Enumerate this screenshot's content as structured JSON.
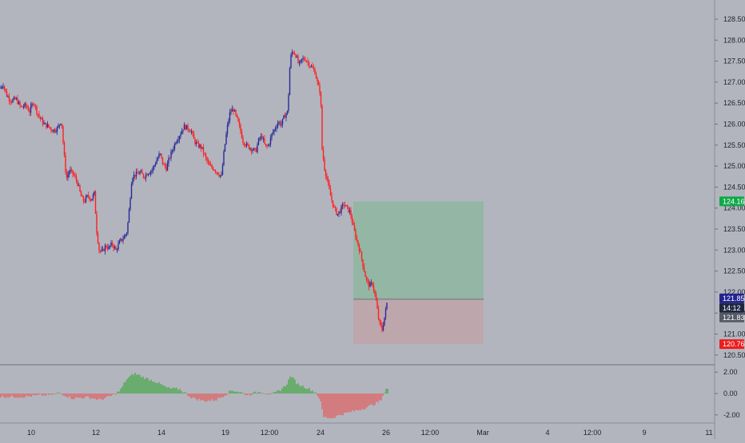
{
  "colors": {
    "background": "#b2b5be",
    "up_candle": "#2a2a96",
    "down_candle": "#ff1f1f",
    "osc_positive": "#3aa63a",
    "osc_negative": "#e85858",
    "target_zone": "#94b6a4",
    "stop_zone": "#bda6ac",
    "target_tag": "#11a84a",
    "price_tag": "#24248f",
    "countdown_tag": "#1f2740",
    "entry_tag": "#555a66",
    "stop_tag": "#ee1c1c",
    "text": "#1e222d"
  },
  "chart_data": [
    {
      "type": "candlestick",
      "title": "",
      "ylim": [
        120.3,
        128.7
      ],
      "price_scale_ticks": [
        "120.50",
        "121.00",
        "121.50",
        "122.00",
        "122.50",
        "123.00",
        "123.50",
        "124.00",
        "124.50",
        "125.00",
        "125.50",
        "126.00",
        "126.50",
        "127.00",
        "127.50",
        "128.00",
        "128.50"
      ],
      "close_path": [
        [
          0,
          126.85
        ],
        [
          4,
          126.95
        ],
        [
          8,
          126.7
        ],
        [
          14,
          126.55
        ],
        [
          20,
          126.6
        ],
        [
          26,
          126.4
        ],
        [
          32,
          126.45
        ],
        [
          37,
          126.3
        ],
        [
          42,
          126.55
        ],
        [
          46,
          126.3
        ],
        [
          50,
          126.15
        ],
        [
          55,
          126.0
        ],
        [
          60,
          125.95
        ],
        [
          66,
          125.85
        ],
        [
          72,
          125.9
        ],
        [
          77,
          126.1
        ],
        [
          80,
          125.3
        ],
        [
          83,
          124.7
        ],
        [
          87,
          124.9
        ],
        [
          92,
          124.8
        ],
        [
          97,
          124.6
        ],
        [
          101,
          124.3
        ],
        [
          105,
          124.15
        ],
        [
          110,
          124.3
        ],
        [
          114,
          124.2
        ],
        [
          118,
          124.35
        ],
        [
          121,
          123.45
        ],
        [
          124,
          123.0
        ],
        [
          128,
          122.95
        ],
        [
          132,
          123.1
        ],
        [
          136,
          123.05
        ],
        [
          140,
          123.15
        ],
        [
          145,
          123.0
        ],
        [
          150,
          123.2
        ],
        [
          155,
          123.3
        ],
        [
          159,
          123.45
        ],
        [
          162,
          124.05
        ],
        [
          165,
          124.75
        ],
        [
          170,
          124.8
        ],
        [
          175,
          124.85
        ],
        [
          180,
          124.75
        ],
        [
          185,
          124.85
        ],
        [
          190,
          124.9
        ],
        [
          195,
          125.1
        ],
        [
          200,
          125.3
        ],
        [
          204,
          125.05
        ],
        [
          208,
          124.95
        ],
        [
          212,
          125.2
        ],
        [
          216,
          125.4
        ],
        [
          220,
          125.6
        ],
        [
          225,
          125.75
        ],
        [
          230,
          125.95
        ],
        [
          235,
          125.9
        ],
        [
          239,
          125.85
        ],
        [
          243,
          125.6
        ],
        [
          247,
          125.5
        ],
        [
          252,
          125.45
        ],
        [
          257,
          125.2
        ],
        [
          262,
          125.0
        ],
        [
          267,
          124.95
        ],
        [
          272,
          124.85
        ],
        [
          277,
          124.75
        ],
        [
          280,
          125.3
        ],
        [
          284,
          125.9
        ],
        [
          288,
          126.3
        ],
        [
          292,
          126.35
        ],
        [
          296,
          126.15
        ],
        [
          300,
          125.9
        ],
        [
          304,
          125.6
        ],
        [
          308,
          125.5
        ],
        [
          312,
          125.45
        ],
        [
          316,
          125.4
        ],
        [
          320,
          125.35
        ],
        [
          324,
          125.65
        ],
        [
          328,
          125.7
        ],
        [
          332,
          125.45
        ],
        [
          336,
          125.5
        ],
        [
          340,
          125.75
        ],
        [
          344,
          125.9
        ],
        [
          348,
          126.05
        ],
        [
          352,
          126.0
        ],
        [
          356,
          126.2
        ],
        [
          360,
          126.3
        ],
        [
          363,
          127.55
        ],
        [
          366,
          127.75
        ],
        [
          370,
          127.65
        ],
        [
          374,
          127.4
        ],
        [
          378,
          127.55
        ],
        [
          382,
          127.55
        ],
        [
          386,
          127.45
        ],
        [
          390,
          127.35
        ],
        [
          394,
          127.25
        ],
        [
          398,
          126.9
        ],
        [
          401,
          126.75
        ],
        [
          403,
          125.4
        ],
        [
          406,
          124.95
        ],
        [
          410,
          124.6
        ],
        [
          414,
          124.25
        ],
        [
          418,
          124.0
        ],
        [
          422,
          123.85
        ],
        [
          426,
          123.95
        ],
        [
          430,
          124.1
        ],
        [
          434,
          124.0
        ],
        [
          438,
          123.9
        ],
        [
          442,
          123.55
        ],
        [
          446,
          123.25
        ],
        [
          450,
          123.0
        ],
        [
          454,
          122.65
        ],
        [
          458,
          122.3
        ],
        [
          462,
          122.15
        ],
        [
          466,
          122.2
        ],
        [
          470,
          121.85
        ],
        [
          474,
          121.3
        ],
        [
          478,
          121.1
        ],
        [
          482,
          121.5
        ],
        [
          485,
          121.85
        ]
      ],
      "x_axis_labels": [
        "10",
        "12",
        "14",
        "19",
        "12:00",
        "24",
        "26",
        "12:00",
        "Mar",
        "4",
        "12:00",
        "9",
        "11"
      ]
    },
    {
      "type": "bar",
      "title": "",
      "ylim": [
        -2.5,
        2.5
      ],
      "y_axis_labels": [
        "2.00",
        "0.00",
        "-2.00"
      ],
      "value_anchors": [
        [
          0,
          -0.3
        ],
        [
          30,
          -0.3
        ],
        [
          45,
          -0.2
        ],
        [
          60,
          -0.15
        ],
        [
          75,
          0.05
        ],
        [
          90,
          -0.45
        ],
        [
          110,
          -0.35
        ],
        [
          125,
          -0.6
        ],
        [
          140,
          -0.2
        ],
        [
          150,
          0.25
        ],
        [
          158,
          1.3
        ],
        [
          168,
          1.9
        ],
        [
          180,
          1.5
        ],
        [
          195,
          1.1
        ],
        [
          210,
          0.5
        ],
        [
          225,
          0.4
        ],
        [
          240,
          -0.4
        ],
        [
          255,
          -0.7
        ],
        [
          270,
          -0.6
        ],
        [
          280,
          -0.2
        ],
        [
          290,
          0.3
        ],
        [
          300,
          0.15
        ],
        [
          310,
          -0.15
        ],
        [
          325,
          0.2
        ],
        [
          340,
          -0.1
        ],
        [
          350,
          0.3
        ],
        [
          358,
          0.8
        ],
        [
          364,
          1.7
        ],
        [
          372,
          0.9
        ],
        [
          385,
          0.5
        ],
        [
          395,
          0.1
        ],
        [
          400,
          -0.5
        ],
        [
          405,
          -2.2
        ],
        [
          415,
          -2.3
        ],
        [
          425,
          -2.0
        ],
        [
          440,
          -1.7
        ],
        [
          455,
          -1.4
        ],
        [
          468,
          -1.0
        ],
        [
          478,
          -0.6
        ],
        [
          482,
          0.45
        ],
        [
          485,
          0.5
        ]
      ]
    }
  ],
  "position": {
    "target_label": "124.16",
    "target_price": 124.16,
    "entry_price": 121.83,
    "stop_label": "120.76",
    "stop_price": 120.76
  },
  "price_tags": {
    "current_price": "121.85",
    "current_value": 121.85,
    "countdown": "14:12",
    "entry_label": "121.83"
  }
}
